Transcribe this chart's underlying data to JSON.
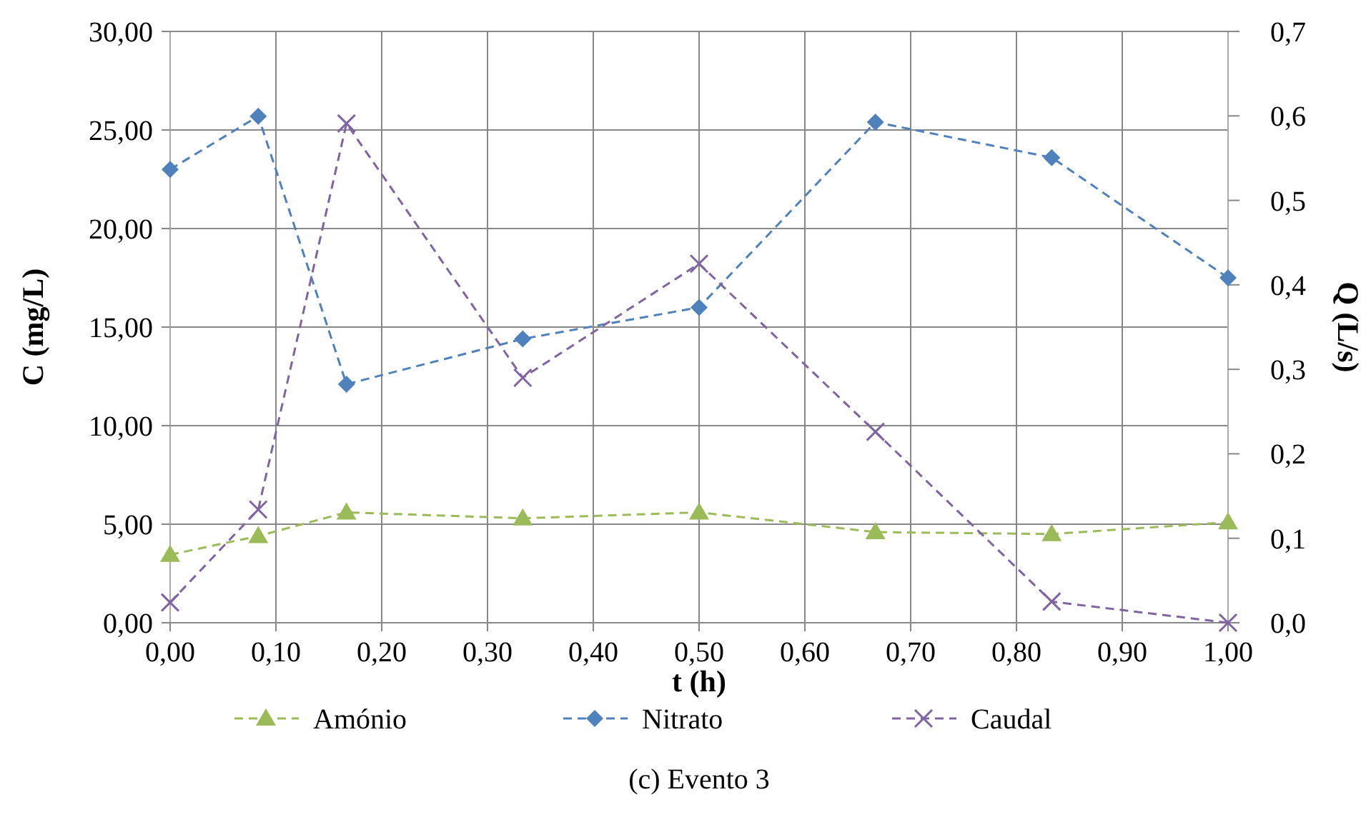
{
  "chart_data": {
    "type": "line",
    "title": "(c) Evento 3",
    "xlabel": "t (h)",
    "ylabel": "C (mg/L)",
    "y2label": "Q (L/s)",
    "x": [
      0,
      0.0833,
      0.1667,
      0.3333,
      0.5,
      0.6667,
      0.8333,
      1.0
    ],
    "series": [
      {
        "name": "Amónio",
        "color": "#9bbb59",
        "marker": "triangle",
        "values": [
          3.45,
          4.4,
          5.6,
          5.3,
          5.6,
          4.6,
          4.5,
          5.1
        ]
      },
      {
        "name": "Nitrato",
        "color": "#4f81bd",
        "marker": "diamond",
        "values": [
          23.0,
          25.7,
          12.1,
          14.4,
          16.0,
          25.4,
          23.6,
          17.5
        ]
      },
      {
        "name": "Caudal",
        "color": "#8064a2",
        "marker": "cross",
        "axis": "y2",
        "values": [
          0.024,
          0.134,
          0.591,
          0.29,
          0.425,
          0.226,
          0.025,
          0.0
        ]
      }
    ],
    "xlim": [
      0,
      1
    ],
    "xticks": [
      {
        "value": 0,
        "label": "0,00"
      },
      {
        "value": 0.1,
        "label": "0,10"
      },
      {
        "value": 0.2,
        "label": "0,20"
      },
      {
        "value": 0.3,
        "label": "0,30"
      },
      {
        "value": 0.4,
        "label": "0,40"
      },
      {
        "value": 0.5,
        "label": "0,50"
      },
      {
        "value": 0.6,
        "label": "0,60"
      },
      {
        "value": 0.7,
        "label": "0,70"
      },
      {
        "value": 0.8,
        "label": "0,80"
      },
      {
        "value": 0.9,
        "label": "0,90"
      },
      {
        "value": 1,
        "label": "1,00"
      }
    ],
    "ylim": [
      0,
      30
    ],
    "yticks": [
      {
        "value": 0,
        "label": "0,00"
      },
      {
        "value": 5,
        "label": "5,00"
      },
      {
        "value": 10,
        "label": "10,00"
      },
      {
        "value": 15,
        "label": "15,00"
      },
      {
        "value": 20,
        "label": "20,00"
      },
      {
        "value": 25,
        "label": "25,00"
      },
      {
        "value": 30,
        "label": "30,00"
      }
    ],
    "y2lim": [
      0,
      0.7
    ],
    "y2ticks": [
      {
        "value": 0,
        "label": "0,0"
      },
      {
        "value": 0.1,
        "label": "0,1"
      },
      {
        "value": 0.2,
        "label": "0,2"
      },
      {
        "value": 0.3,
        "label": "0,3"
      },
      {
        "value": 0.4,
        "label": "0,4"
      },
      {
        "value": 0.5,
        "label": "0,5"
      },
      {
        "value": 0.6,
        "label": "0,6"
      },
      {
        "value": 0.7,
        "label": "0,7"
      }
    ],
    "grid": true,
    "legend": "bottom",
    "line_style": "dashed"
  }
}
